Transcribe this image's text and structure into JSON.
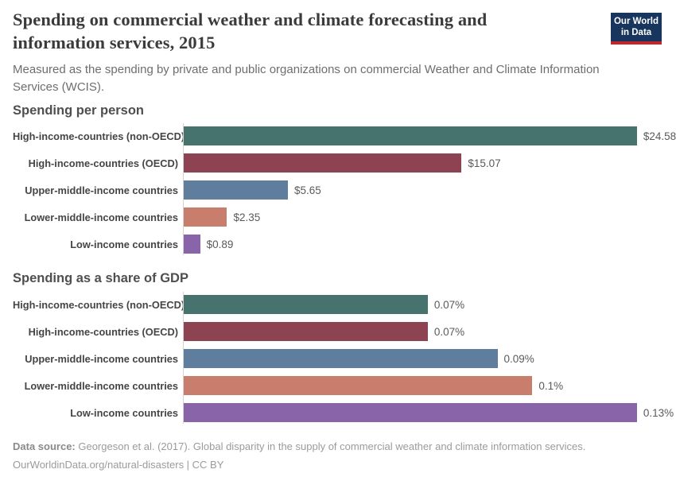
{
  "header": {
    "title": "Spending on commercial weather and climate forecasting and information services, 2015",
    "subtitle": "Measured as the spending by private and public organizations on commercial Weather and Climate Information Services (WCIS).",
    "logo": {
      "line1": "Our World",
      "line2": "in Data",
      "bg_color": "#18355E",
      "accent_color": "#BE282D"
    }
  },
  "chart_data": [
    {
      "type": "bar",
      "orientation": "horizontal",
      "title": "Spending per person",
      "categories": [
        "High-income-countries (non-OECD)",
        "High-income-countries (OECD)",
        "Upper-middle-income countries",
        "Lower-middle-income countries",
        "Low-income countries"
      ],
      "values": [
        24.58,
        15.07,
        5.65,
        2.35,
        0.89
      ],
      "data_labels": [
        "$24.58",
        "$15.07",
        "$5.65",
        "$2.35",
        "$0.89"
      ],
      "colors": [
        "#47736E",
        "#8D4352",
        "#5F7D9C",
        "#C97E6D",
        "#8A64A8"
      ],
      "legend": "none",
      "grid": "off"
    },
    {
      "type": "bar",
      "orientation": "horizontal",
      "title": "Spending as a share of GDP",
      "categories": [
        "High-income-countries (non-OECD)",
        "High-income-countries (OECD)",
        "Upper-middle-income countries",
        "Lower-middle-income countries",
        "Low-income countries"
      ],
      "values": [
        0.07,
        0.07,
        0.09,
        0.1,
        0.13
      ],
      "data_labels": [
        "0.07%",
        "0.07%",
        "0.09%",
        "0.1%",
        "0.13%"
      ],
      "colors": [
        "#47736E",
        "#8D4352",
        "#5F7D9C",
        "#C97E6D",
        "#8A64A8"
      ],
      "legend": "none",
      "grid": "off"
    }
  ],
  "footer": {
    "source_label": "Data source:",
    "source_text": " Georgeson et al. (2017). Global disparity in the supply of commercial weather and climate information services.",
    "link_text": "OurWorldinData.org/natural-disasters | CC BY"
  }
}
